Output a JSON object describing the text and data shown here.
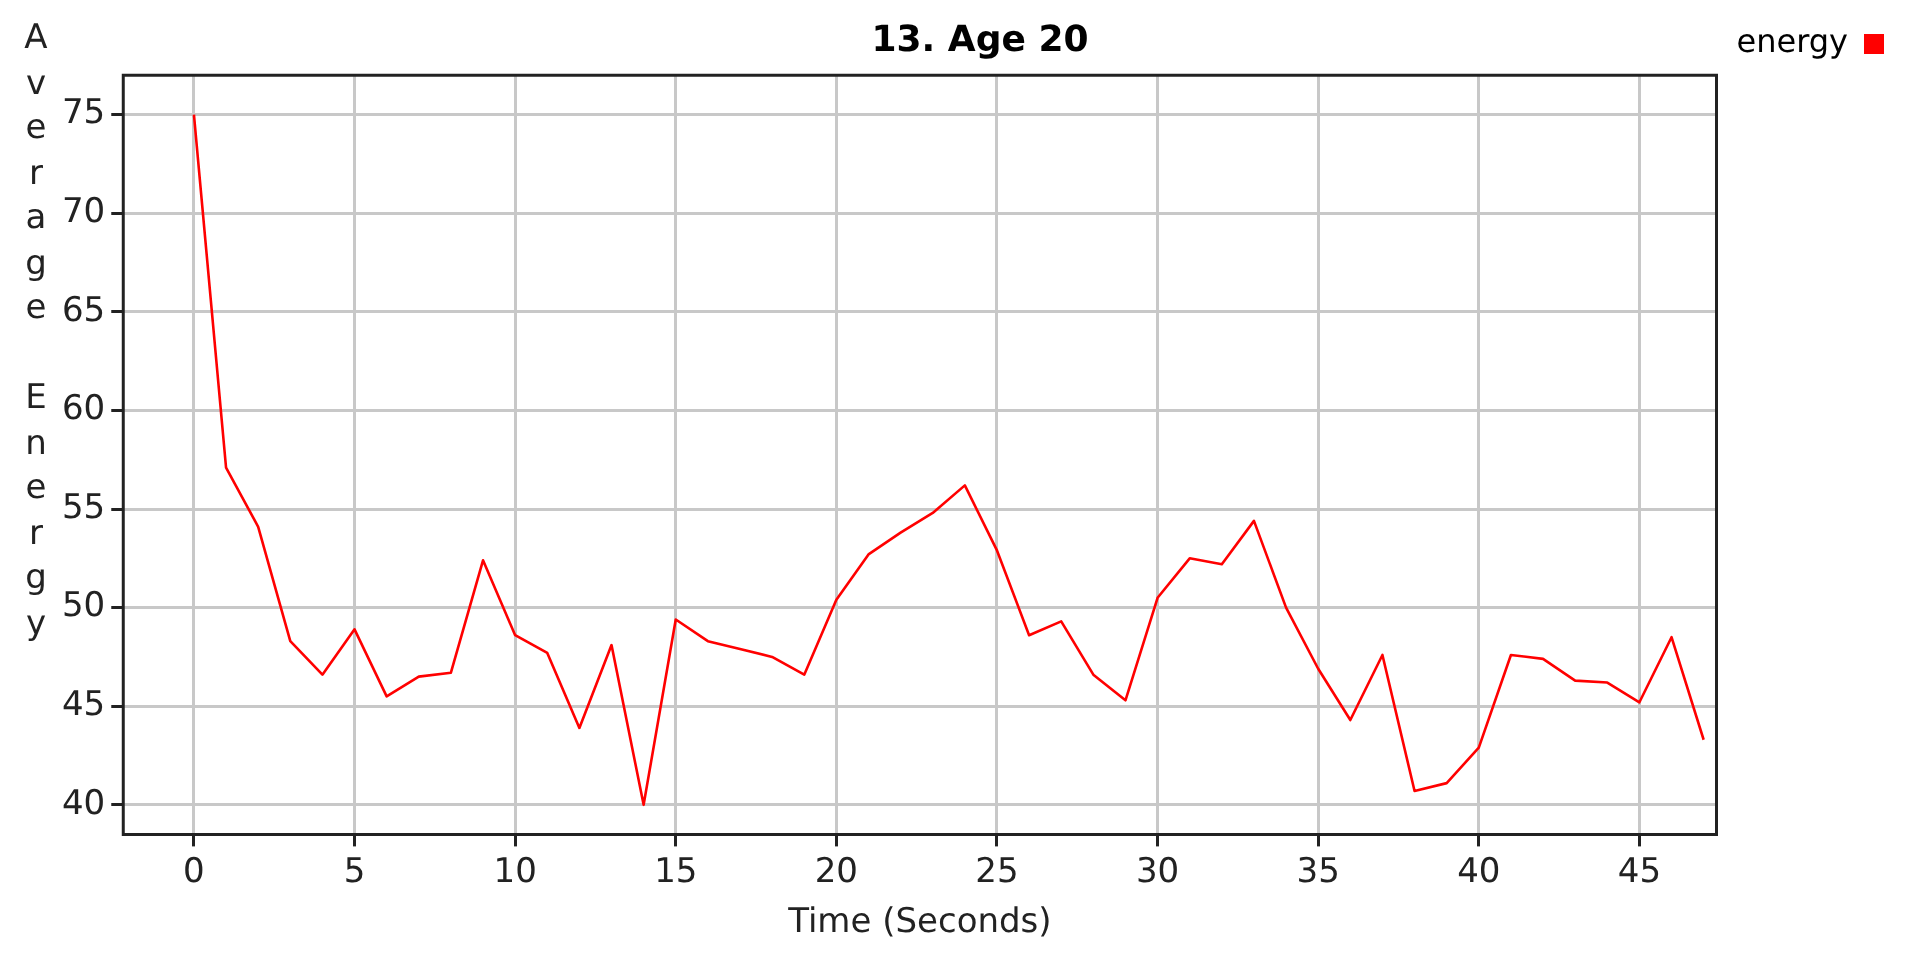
{
  "chart_data": {
    "type": "line",
    "title": "13. Age 20",
    "xlabel": "Time (Seconds)",
    "ylabel": "Average Energy",
    "x": [
      0,
      1,
      2,
      3,
      4,
      5,
      6,
      7,
      8,
      9,
      10,
      11,
      12,
      13,
      14,
      15,
      16,
      17,
      18,
      19,
      20,
      21,
      22,
      23,
      24,
      25,
      26,
      27,
      28,
      29,
      30,
      31,
      32,
      33,
      34,
      35,
      36,
      37,
      38,
      39,
      40,
      41,
      42,
      43,
      44,
      45,
      46,
      47
    ],
    "series": [
      {
        "name": "energy",
        "color": "#ff0000",
        "values": [
          75,
          57.1,
          54.1,
          48.3,
          46.6,
          48.9,
          45.5,
          46.5,
          46.7,
          52.4,
          48.6,
          47.7,
          43.9,
          48.1,
          40,
          49.4,
          48.3,
          47.9,
          47.5,
          46.6,
          50.4,
          52.7,
          53.8,
          54.8,
          56.2,
          52.9,
          48.6,
          49.3,
          46.6,
          45.3,
          50.5,
          52.5,
          52.2,
          54.4,
          50,
          46.9,
          44.3,
          47.6,
          40.7,
          41.1,
          42.9,
          47.6,
          47.4,
          46.3,
          46.2,
          45.2,
          48.5,
          43.3
        ]
      }
    ],
    "xlim": [
      -2.2,
      47.4
    ],
    "xticks": [
      0,
      5,
      10,
      15,
      20,
      25,
      30,
      35,
      40,
      45
    ],
    "ylim": [
      38.5,
      77
    ],
    "yticks": [
      40,
      45,
      50,
      55,
      60,
      65,
      70,
      75
    ],
    "grid": true,
    "legend": "top right",
    "marker": "none",
    "line_style": "solid"
  }
}
